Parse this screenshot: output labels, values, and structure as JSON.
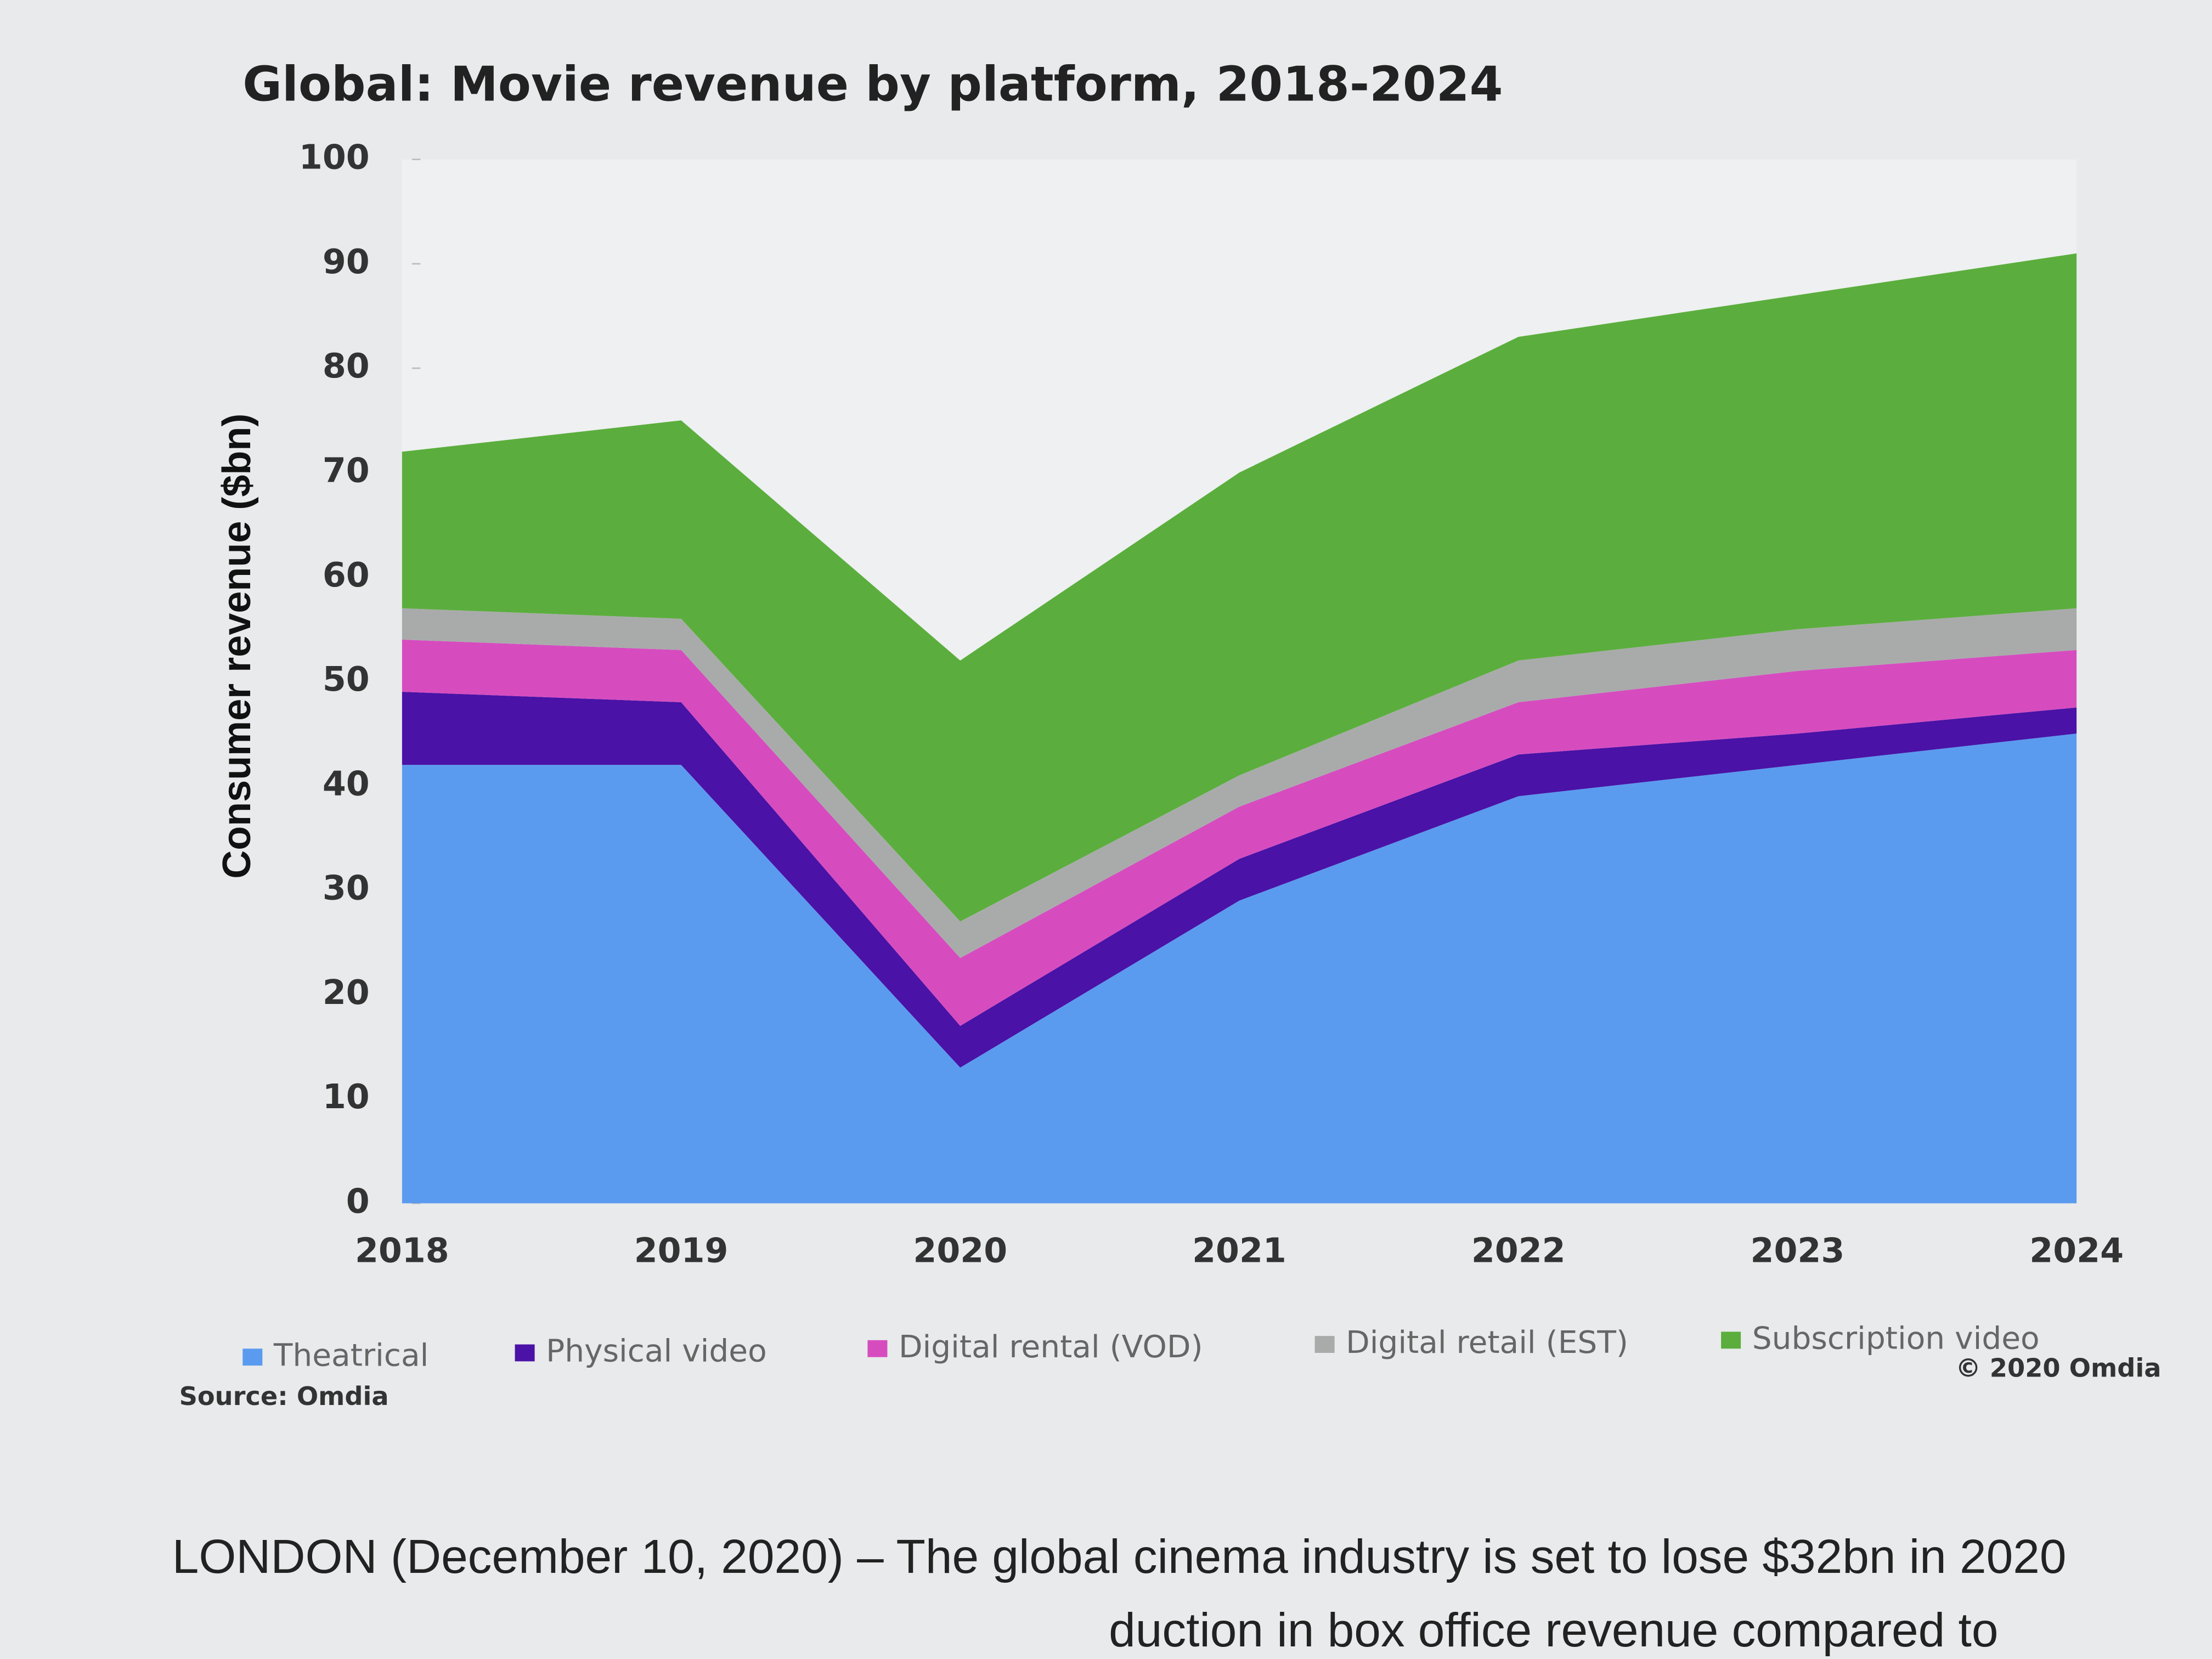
{
  "chart_data": {
    "type": "stacked_area",
    "title": "Global: Movie revenue by platform, 2018-2024",
    "y_label": "Consumer revenue ($bn)",
    "categories": [
      "2018",
      "2019",
      "2020",
      "2021",
      "2022",
      "2023",
      "2024"
    ],
    "series": [
      {
        "name": "Theatrical",
        "color": "#5b9bef",
        "values": [
          42,
          42,
          13,
          29,
          39,
          42,
          45
        ]
      },
      {
        "name": "Physical video",
        "color": "#4a12a6",
        "values": [
          7,
          6,
          4,
          4,
          4,
          3,
          2.5
        ]
      },
      {
        "name": "Digital rental (VOD)",
        "color": "#d64cbf",
        "values": [
          5,
          5,
          6.5,
          5,
          5,
          6,
          5.5
        ]
      },
      {
        "name": "Digital retail (EST)",
        "color": "#a9abab",
        "values": [
          3,
          3,
          3.5,
          3,
          4,
          4,
          4
        ]
      },
      {
        "name": "Subscription video",
        "color": "#5bae3d",
        "values": [
          15,
          19,
          25,
          29,
          31,
          32,
          34
        ]
      }
    ],
    "ylim": [
      0,
      100
    ],
    "yticks": [
      0,
      10,
      20,
      30,
      40,
      50,
      60,
      70,
      80,
      90,
      100
    ],
    "source": "Source: Omdia",
    "copyright": "© 2020 Omdia"
  },
  "article": {
    "line1": "LONDON (December 10, 2020) – The global cinema industry is set to lose $32bn in 2020",
    "line2": "duction in box office revenue compared to"
  }
}
